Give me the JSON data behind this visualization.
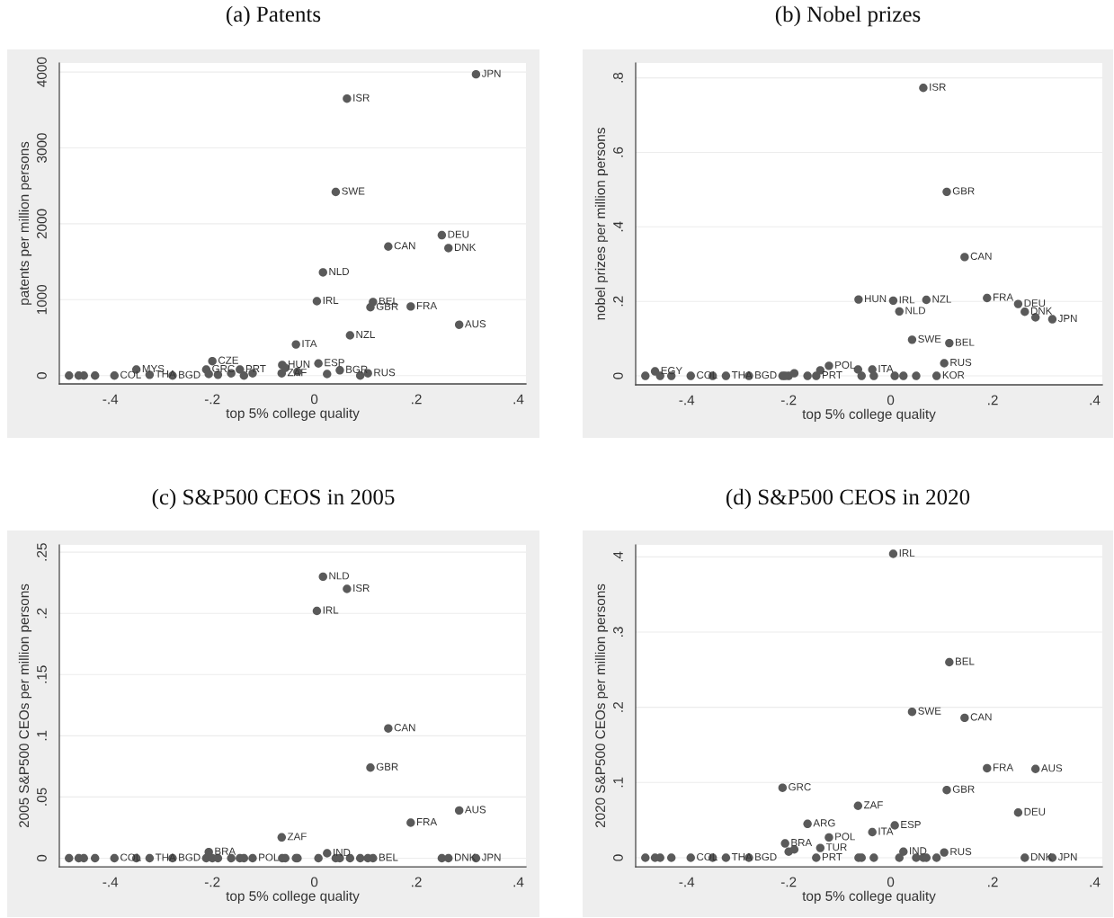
{
  "chart_data": [
    {
      "type": "scatter",
      "title": "(a) Patents",
      "xlabel": "top 5% college quality",
      "ylabel": "patents per million persons",
      "color": "#5a5a5a",
      "marker": "circle",
      "grid": "y",
      "xlim": [
        -0.5,
        0.415
      ],
      "ylim": [
        -110,
        4120
      ],
      "xticks": [
        {
          "value": -0.4,
          "label": "-.4"
        },
        {
          "value": -0.2,
          "label": "-.2"
        },
        0,
        {
          "value": 0.2,
          "label": ".2"
        },
        {
          "value": 0.4,
          "label": ".4"
        }
      ],
      "yticks": [
        0,
        1000,
        2000,
        3000,
        4000
      ],
      "x": [
        -0.481,
        -0.462,
        -0.452,
        -0.43,
        -0.392,
        -0.349,
        -0.323,
        -0.278,
        -0.212,
        -0.2,
        -0.207,
        -0.189,
        -0.163,
        -0.146,
        -0.138,
        -0.121,
        -0.064,
        -0.063,
        -0.057,
        -0.036,
        -0.033,
        0.005,
        0.008,
        0.017,
        0.025,
        0.042,
        0.05,
        0.064,
        0.07,
        0.09,
        0.105,
        0.11,
        0.115,
        0.145,
        0.189,
        0.25,
        0.263,
        0.284,
        0.317
      ],
      "values": [
        0,
        0,
        0,
        0,
        0,
        80,
        10,
        0,
        80,
        190,
        20,
        10,
        30,
        80,
        0,
        30,
        30,
        140,
        100,
        410,
        50,
        980,
        160,
        1360,
        20,
        2420,
        70,
        3650,
        530,
        0,
        30,
        900,
        970,
        1700,
        910,
        1850,
        1680,
        670,
        3970
      ],
      "value_labels": [
        null,
        null,
        null,
        null,
        "COL",
        "MYS",
        "THA",
        "BGD",
        "GRC",
        "CZE",
        null,
        null,
        null,
        "PRT",
        null,
        null,
        "ZAF",
        "HUN",
        null,
        "ITA",
        null,
        "IRL",
        "ESP",
        "NLD",
        null,
        "SWE",
        "BGR",
        "ISR",
        "NZL",
        null,
        "RUS",
        "GBR",
        "BEL",
        "CAN",
        "FRA",
        "DEU",
        "DNK",
        "AUS",
        "JPN"
      ]
    },
    {
      "type": "scatter",
      "title": "(b) Nobel prizes",
      "xlabel": "top 5% college quality",
      "ylabel": "nobel prizes per million persons",
      "color": "#5a5a5a",
      "marker": "circle",
      "grid": "y",
      "xlim": [
        -0.5,
        0.415
      ],
      "ylim": [
        -0.024,
        0.84
      ],
      "xticks": [
        {
          "value": -0.4,
          "label": "-.4"
        },
        {
          "value": -0.2,
          "label": "-.2"
        },
        0,
        {
          "value": 0.2,
          "label": ".2"
        },
        {
          "value": 0.4,
          "label": ".4"
        }
      ],
      "yticks": [
        0,
        {
          "value": 0.2,
          "label": ".2"
        },
        {
          "value": 0.4,
          "label": ".4"
        },
        {
          "value": 0.6,
          "label": ".6"
        },
        {
          "value": 0.8,
          "label": ".8"
        }
      ],
      "x": [
        -0.481,
        -0.462,
        -0.452,
        -0.43,
        -0.392,
        -0.349,
        -0.323,
        -0.278,
        -0.212,
        -0.2,
        -0.207,
        -0.189,
        -0.163,
        -0.146,
        -0.138,
        -0.121,
        -0.064,
        -0.063,
        -0.057,
        -0.036,
        -0.033,
        0.005,
        0.008,
        0.017,
        0.025,
        0.042,
        0.05,
        0.064,
        0.07,
        0.09,
        0.105,
        0.11,
        0.115,
        0.145,
        0.189,
        0.25,
        0.263,
        0.284,
        0.317
      ],
      "values": [
        0,
        0.012,
        0,
        0,
        0,
        0,
        0,
        0,
        0,
        0,
        0,
        0.007,
        0,
        0,
        0.015,
        0.027,
        0.017,
        0.205,
        0,
        0.017,
        0,
        0.202,
        0,
        0.173,
        0,
        0.097,
        0,
        0.773,
        0.204,
        0,
        0.034,
        0.494,
        0.088,
        0.319,
        0.209,
        0.193,
        0.172,
        0.157,
        0.152
      ],
      "value_labels": [
        null,
        "EGY",
        null,
        null,
        "COL",
        null,
        "THA",
        "BGD",
        null,
        null,
        null,
        null,
        null,
        "PRT",
        null,
        "POL",
        null,
        "HUN",
        null,
        "ITA",
        null,
        "IRL",
        null,
        "NLD",
        null,
        "SWE",
        null,
        "ISR",
        "NZL",
        "KOR",
        "RUS",
        "GBR",
        "BEL",
        "CAN",
        "FRA",
        "DEU",
        "DNK",
        null,
        "JPN"
      ]
    },
    {
      "type": "scatter",
      "title": "(c) S&P500 CEOS in 2005",
      "xlabel": "top 5% college quality",
      "ylabel": "2005 S&P500 CEOs per million persons",
      "color": "#5a5a5a",
      "marker": "circle",
      "grid": "y",
      "xlim": [
        -0.5,
        0.415
      ],
      "ylim": [
        -0.007,
        0.256
      ],
      "xticks": [
        {
          "value": -0.4,
          "label": "-.4"
        },
        {
          "value": -0.2,
          "label": "-.2"
        },
        0,
        {
          "value": 0.2,
          "label": ".2"
        },
        {
          "value": 0.4,
          "label": ".4"
        }
      ],
      "yticks": [
        0,
        {
          "value": 0.05,
          "label": ".05"
        },
        {
          "value": 0.1,
          "label": ".1"
        },
        {
          "value": 0.15,
          "label": ".15"
        },
        {
          "value": 0.2,
          "label": ".2"
        },
        {
          "value": 0.25,
          "label": ".25"
        }
      ],
      "x": [
        -0.481,
        -0.462,
        -0.452,
        -0.43,
        -0.392,
        -0.349,
        -0.323,
        -0.278,
        -0.212,
        -0.2,
        -0.207,
        -0.189,
        -0.163,
        -0.146,
        -0.138,
        -0.121,
        -0.064,
        -0.063,
        -0.057,
        -0.036,
        -0.033,
        0.005,
        0.008,
        0.017,
        0.025,
        0.042,
        0.05,
        0.064,
        0.07,
        0.09,
        0.105,
        0.11,
        0.115,
        0.145,
        0.189,
        0.25,
        0.263,
        0.284,
        0.317
      ],
      "values": [
        0,
        0,
        0,
        0,
        0,
        0,
        0,
        0,
        0,
        0,
        0.005,
        0,
        0,
        0,
        0,
        0,
        0.017,
        0,
        0,
        0,
        0,
        0.202,
        0,
        0.23,
        0.004,
        0,
        0,
        0.22,
        0,
        0,
        0,
        0.074,
        0,
        0.106,
        0.029,
        0,
        0,
        0.039,
        0
      ],
      "value_labels": [
        null,
        null,
        null,
        null,
        "COL",
        null,
        "THA",
        "BGD",
        null,
        null,
        "BRA",
        null,
        null,
        null,
        null,
        "POL",
        "ZAF",
        null,
        null,
        null,
        null,
        "IRL",
        null,
        "NLD",
        "IND",
        null,
        null,
        "ISR",
        null,
        null,
        null,
        "GBR",
        "BEL",
        "CAN",
        "FRA",
        null,
        "DNK",
        "AUS",
        "JPN"
      ]
    },
    {
      "type": "scatter",
      "title": "(d) S&P500 CEOS in 2020",
      "xlabel": "top 5% college quality",
      "ylabel": "2020 S&P500 CEOs per million persons",
      "color": "#5a5a5a",
      "marker": "circle",
      "grid": "y",
      "xlim": [
        -0.5,
        0.415
      ],
      "ylim": [
        -0.012,
        0.416
      ],
      "xticks": [
        {
          "value": -0.4,
          "label": "-.4"
        },
        {
          "value": -0.2,
          "label": "-.2"
        },
        0,
        {
          "value": 0.2,
          "label": ".2"
        },
        {
          "value": 0.4,
          "label": ".4"
        }
      ],
      "yticks": [
        0,
        {
          "value": 0.1,
          "label": ".1"
        },
        {
          "value": 0.2,
          "label": ".2"
        },
        {
          "value": 0.3,
          "label": ".3"
        },
        {
          "value": 0.4,
          "label": ".4"
        }
      ],
      "x": [
        -0.481,
        -0.462,
        -0.452,
        -0.43,
        -0.392,
        -0.349,
        -0.323,
        -0.278,
        -0.212,
        -0.2,
        -0.207,
        -0.189,
        -0.163,
        -0.146,
        -0.138,
        -0.121,
        -0.064,
        -0.063,
        -0.057,
        -0.036,
        -0.033,
        0.005,
        0.008,
        0.017,
        0.025,
        0.042,
        0.05,
        0.064,
        0.07,
        0.09,
        0.105,
        0.11,
        0.115,
        0.145,
        0.189,
        0.25,
        0.263,
        0.284,
        0.317
      ],
      "values": [
        0,
        0,
        0,
        0,
        0,
        0,
        0,
        0,
        0.093,
        0.008,
        0.019,
        0.011,
        0.045,
        0,
        0.013,
        0.027,
        0.069,
        0,
        0,
        0.034,
        0,
        0.404,
        0.043,
        0,
        0.008,
        0.194,
        0,
        0,
        0,
        0,
        0.007,
        0.09,
        0.26,
        0.186,
        0.119,
        0.06,
        0,
        0.118,
        0
      ],
      "value_labels": [
        null,
        null,
        null,
        null,
        "COL",
        null,
        "THA",
        "BGD",
        "GRC",
        null,
        "BRA",
        null,
        "ARG",
        "PRT",
        "TUR",
        "POL",
        "ZAF",
        null,
        null,
        "ITA",
        null,
        "IRL",
        "ESP",
        null,
        "IND",
        "SWE",
        null,
        null,
        null,
        null,
        "RUS",
        "GBR",
        "BEL",
        "CAN",
        "FRA",
        "DEU",
        "DNK",
        "AUS",
        "JPN"
      ]
    }
  ]
}
